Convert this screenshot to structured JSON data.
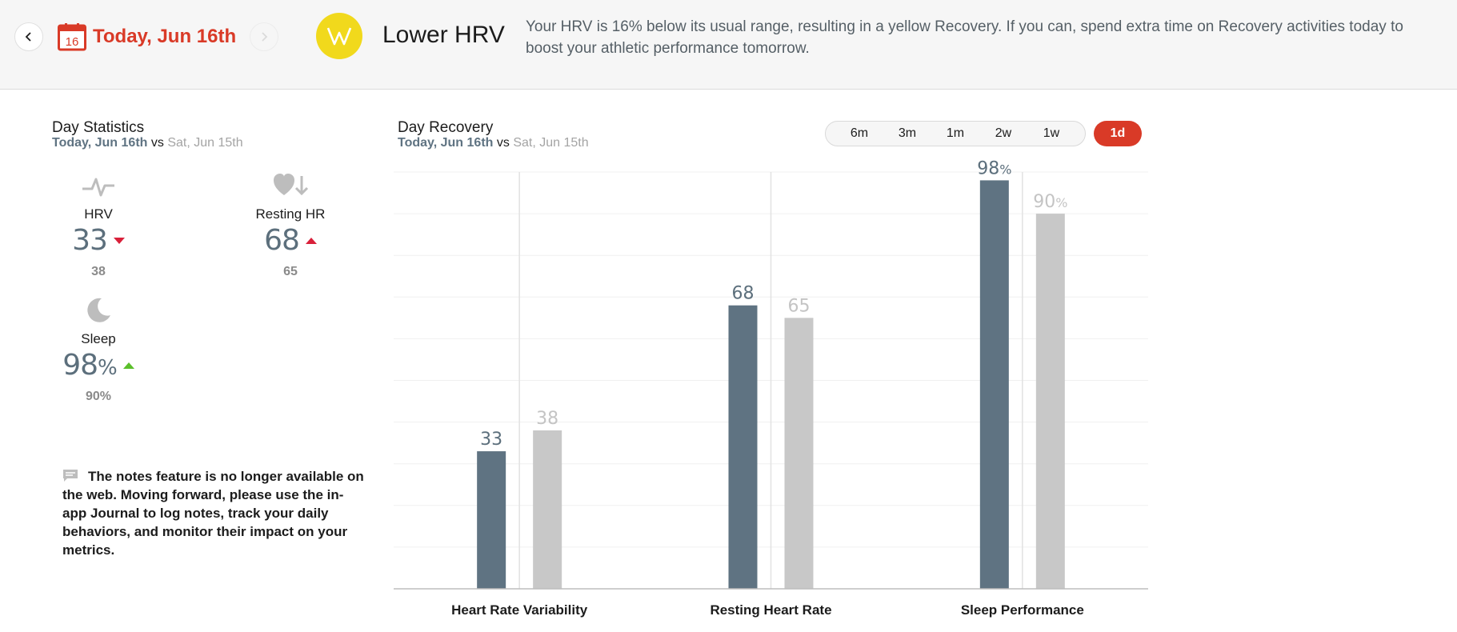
{
  "header": {
    "prev_icon": "chevron-left-icon",
    "next_icon": "chevron-right-icon",
    "calendar_day": "16",
    "date_title": "Today, Jun 16th",
    "logo_icon": "whoop-logo-icon",
    "headline": "Lower HRV",
    "message": "Your HRV is 16% below its usual range, resulting in a yellow Recovery. If you can, spend extra time on Recovery activities today to boost your athletic performance tomorrow.",
    "colors": {
      "accent": "#d93a27",
      "logo_yellow": "#f1d91c",
      "header_bg": "#f6f6f6"
    }
  },
  "day_statistics": {
    "title": "Day Statistics",
    "today": "Today, Jun 16th",
    "vs": "vs",
    "previous": "Sat, Jun 15th",
    "stats": [
      {
        "label": "HRV",
        "value": "33",
        "unit": "",
        "previous": "38",
        "trend": "down",
        "icon": "hrv-pulse-icon"
      },
      {
        "label": "Resting HR",
        "value": "68",
        "unit": "",
        "previous": "65",
        "trend": "up",
        "icon": "heart-down-arrow-icon"
      },
      {
        "label": "Sleep",
        "value": "98",
        "unit": "%",
        "previous": "90%",
        "trend": "up",
        "icon": "moon-icon"
      }
    ]
  },
  "notes": {
    "icon": "comment-icon",
    "text": "The notes feature is no longer available on the web. Moving forward, please use the in-app Journal to log notes, track your daily behaviors, and monitor their impact on your metrics."
  },
  "day_recovery": {
    "title": "Day Recovery",
    "today": "Today, Jun 16th",
    "vs": "vs",
    "previous": "Sat, Jun 15th",
    "ranges": [
      "6m",
      "3m",
      "1m",
      "2w",
      "1w"
    ],
    "active_range": "1d"
  },
  "chart_data": {
    "type": "bar",
    "categories": [
      "Heart Rate Variability",
      "Resting Heart Rate",
      "Sleep Performance"
    ],
    "series": [
      {
        "values": [
          33,
          68,
          98
        ],
        "labels": [
          "33",
          "68",
          "98%"
        ],
        "color": "#5f7382"
      },
      {
        "values": [
          38,
          65,
          90
        ],
        "labels": [
          "38",
          "65",
          "90%"
        ],
        "color": "#c8c8c8"
      }
    ],
    "ylim": [
      0,
      100
    ],
    "grid": true,
    "title": "",
    "xlabel": "",
    "ylabel": ""
  }
}
